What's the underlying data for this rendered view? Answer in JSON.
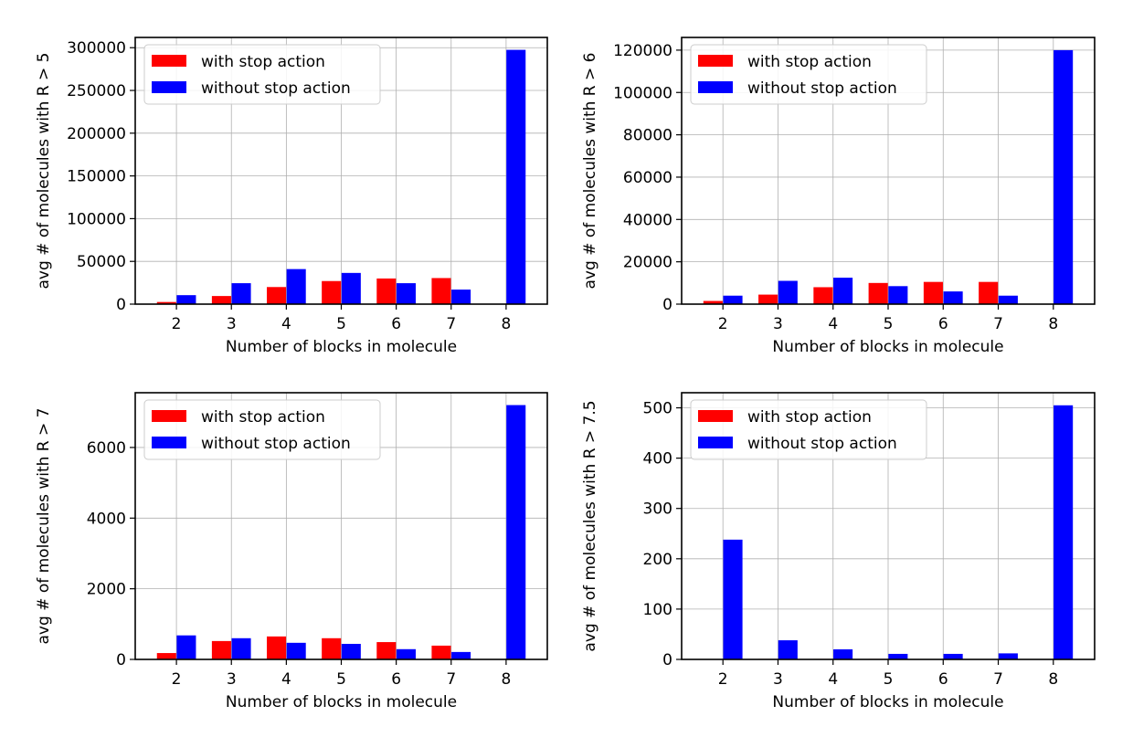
{
  "colors": {
    "with_stop": "#ff0000",
    "without_stop": "#0000ff"
  },
  "chart_data": [
    {
      "type": "bar",
      "xlabel": "Number of blocks in molecule",
      "ylabel": "avg # of molecules with R > 5",
      "categories": [
        "2",
        "3",
        "4",
        "5",
        "6",
        "7",
        "8"
      ],
      "ylim": [
        0,
        312000
      ],
      "yticks": [
        0,
        50000,
        100000,
        150000,
        200000,
        250000,
        300000
      ],
      "grid": true,
      "legend": "top-left",
      "series": [
        {
          "name": "with stop action",
          "color": "#ff0000",
          "values": [
            2500,
            9500,
            20000,
            27000,
            30000,
            30500,
            null
          ]
        },
        {
          "name": "without stop action",
          "color": "#0000ff",
          "values": [
            10500,
            24500,
            41000,
            36500,
            24500,
            17000,
            297500
          ]
        }
      ]
    },
    {
      "type": "bar",
      "xlabel": "Number of blocks in molecule",
      "ylabel": "avg # of molecules with R > 6",
      "categories": [
        "2",
        "3",
        "4",
        "5",
        "6",
        "7",
        "8"
      ],
      "ylim": [
        0,
        126000
      ],
      "yticks": [
        0,
        20000,
        40000,
        60000,
        80000,
        100000,
        120000
      ],
      "grid": true,
      "legend": "top-left",
      "series": [
        {
          "name": "with stop action",
          "color": "#ff0000",
          "values": [
            1500,
            4500,
            8000,
            10000,
            10500,
            10500,
            null
          ]
        },
        {
          "name": "without stop action",
          "color": "#0000ff",
          "values": [
            4000,
            11000,
            12500,
            8500,
            6000,
            4000,
            120000
          ]
        }
      ]
    },
    {
      "type": "bar",
      "xlabel": "Number of blocks in molecule",
      "ylabel": "avg # of molecules with R > 7",
      "categories": [
        "2",
        "3",
        "4",
        "5",
        "6",
        "7",
        "8"
      ],
      "ylim": [
        0,
        7550
      ],
      "yticks": [
        0,
        2000,
        4000,
        6000
      ],
      "grid": true,
      "legend": "top-left",
      "series": [
        {
          "name": "with stop action",
          "color": "#ff0000",
          "values": [
            180,
            520,
            650,
            600,
            490,
            390,
            null
          ]
        },
        {
          "name": "without stop action",
          "color": "#0000ff",
          "values": [
            680,
            600,
            470,
            440,
            290,
            210,
            7200
          ]
        }
      ]
    },
    {
      "type": "bar",
      "xlabel": "Number of blocks in molecule",
      "ylabel": "avg # of molecules with R > 7.5",
      "categories": [
        "2",
        "3",
        "4",
        "5",
        "6",
        "7",
        "8"
      ],
      "ylim": [
        0,
        530
      ],
      "yticks": [
        0,
        100,
        200,
        300,
        400,
        500
      ],
      "grid": true,
      "legend": "top-left",
      "series": [
        {
          "name": "with stop action",
          "color": "#ff0000",
          "values": [
            0,
            1,
            1,
            1,
            0,
            0,
            null
          ]
        },
        {
          "name": "without stop action",
          "color": "#0000ff",
          "values": [
            238,
            38,
            20,
            11,
            11,
            12,
            505
          ]
        }
      ]
    }
  ]
}
